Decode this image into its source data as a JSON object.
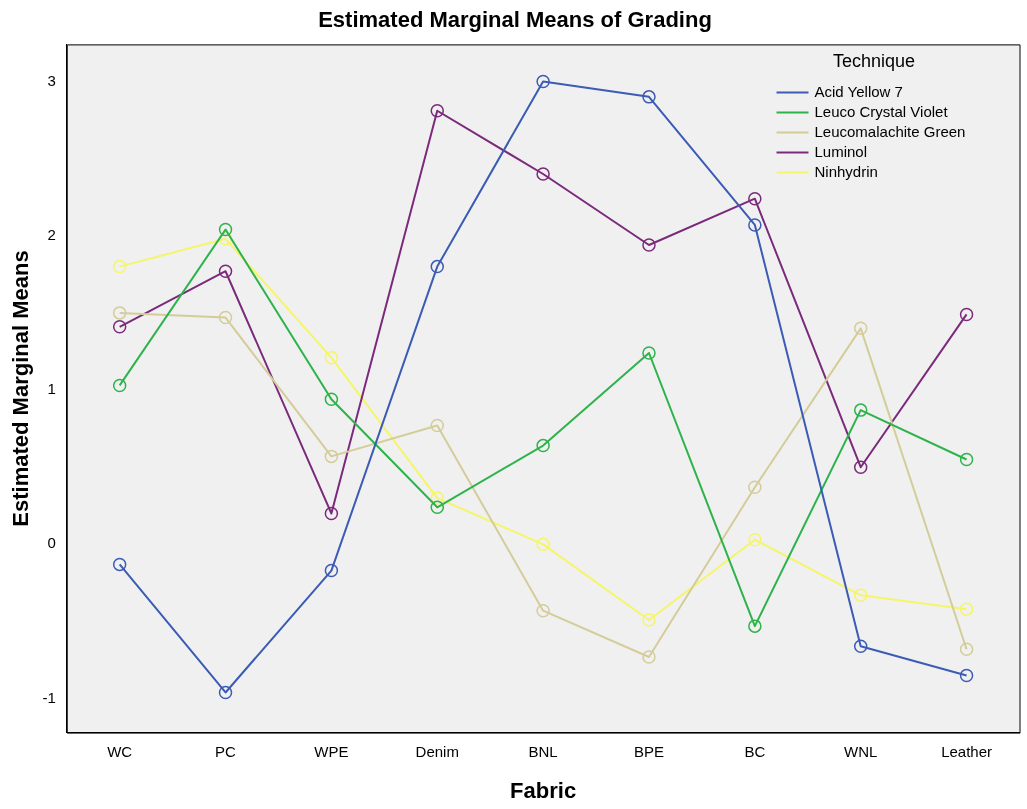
{
  "chart_data": {
    "type": "line",
    "title": "Estimated Marginal Means of Grading",
    "xlabel": "Fabric",
    "ylabel": "Estimated Marginal Means",
    "legend_title": "Technique",
    "categories": [
      "WC",
      "PC",
      "WPE",
      "Denim",
      "BNL",
      "BPE",
      "BC",
      "WNL",
      "Leather"
    ],
    "series": [
      {
        "name": "Acid Yellow 7",
        "color": "#3b5bb5",
        "values": [
          -0.13,
          -0.96,
          -0.17,
          1.8,
          3.0,
          2.9,
          2.07,
          -0.66,
          -0.85
        ]
      },
      {
        "name": "Leuco Crystal Violet",
        "color": "#2db34a",
        "values": [
          1.03,
          2.04,
          0.94,
          0.24,
          0.64,
          1.24,
          -0.53,
          0.87,
          0.55
        ]
      },
      {
        "name": "Leucomalachite Green",
        "color": "#d4cc99",
        "values": [
          1.5,
          1.47,
          0.57,
          0.77,
          -0.43,
          -0.73,
          0.37,
          1.4,
          -0.68
        ]
      },
      {
        "name": "Luminol",
        "color": "#7b2a7b",
        "values": [
          1.41,
          1.77,
          0.2,
          2.81,
          2.4,
          1.94,
          2.24,
          0.5,
          1.49
        ]
      },
      {
        "name": "Ninhydrin",
        "color": "#f5f56a",
        "values": [
          1.8,
          1.98,
          1.21,
          0.3,
          0.0,
          -0.49,
          0.03,
          -0.33,
          -0.42
        ]
      }
    ],
    "ylim": [
      -1.22,
      3.24
    ],
    "yticks": [
      -1,
      0,
      1,
      2,
      3
    ],
    "grid": false,
    "legend": "top right",
    "marker": "circle",
    "line_style": "solid"
  }
}
